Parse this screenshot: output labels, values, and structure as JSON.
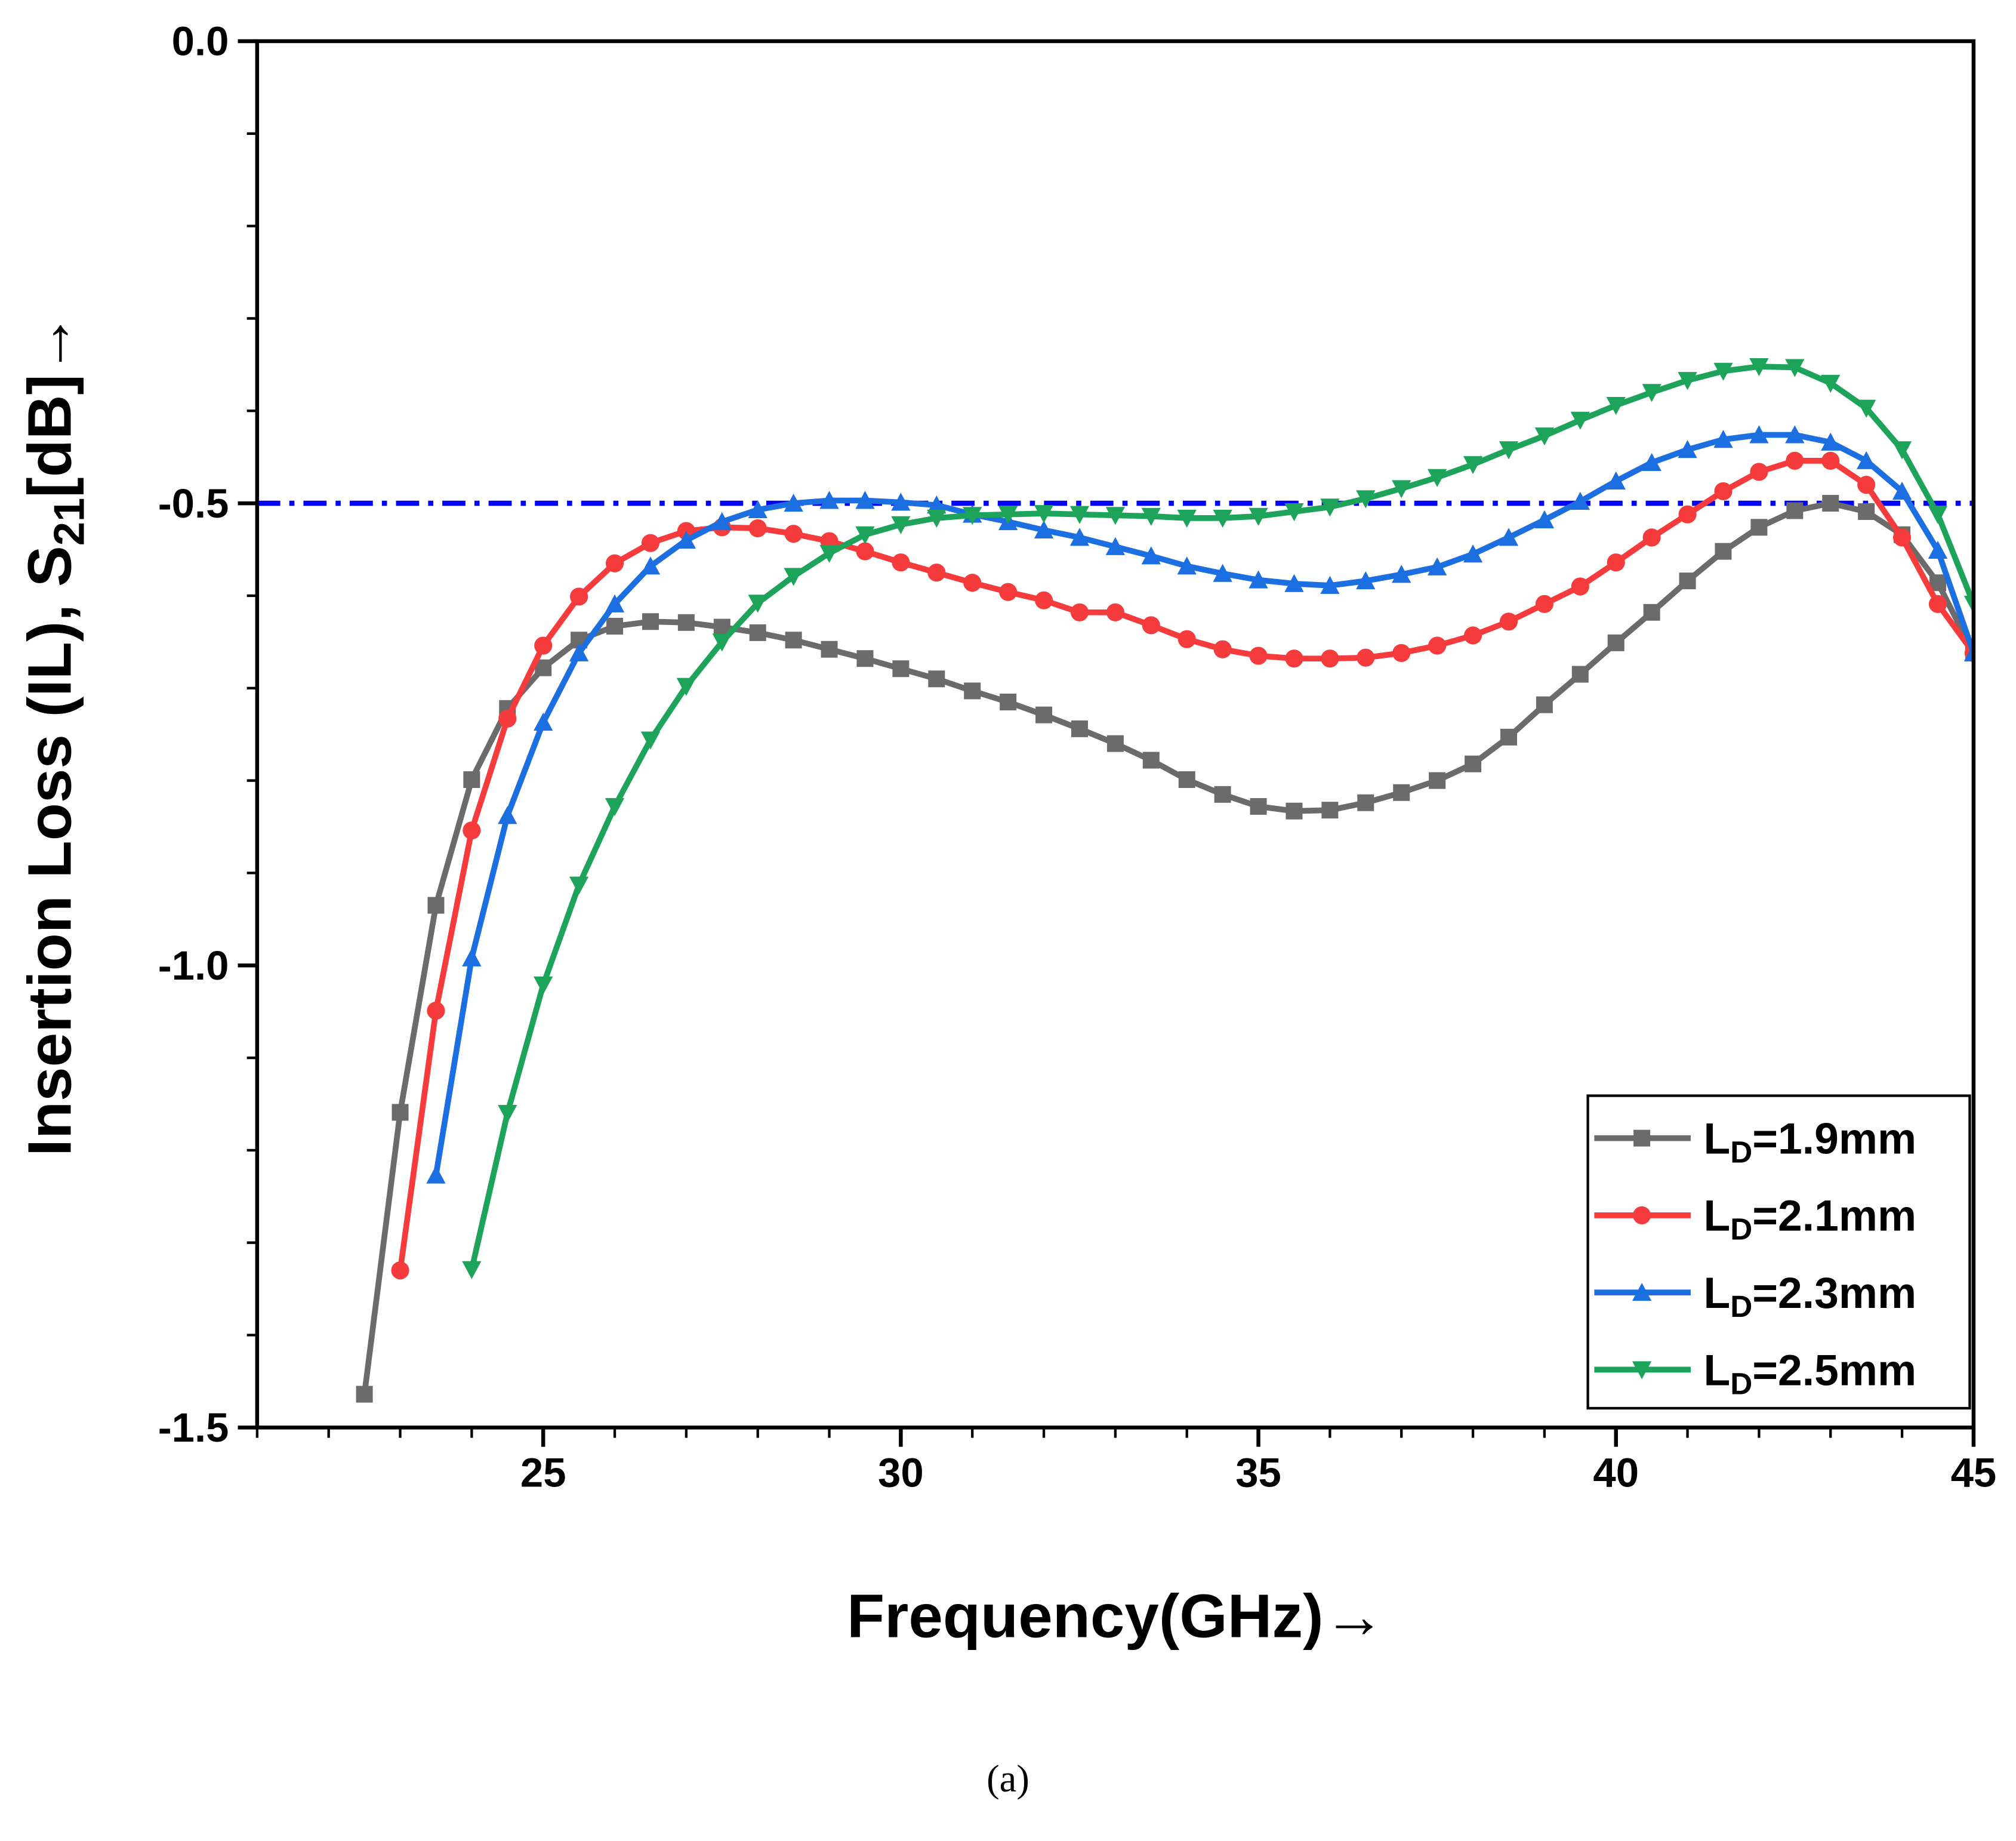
{
  "chart_data": {
    "type": "line",
    "xlabel": "Frequency(GHz)→",
    "ylabel": "Insertion Loss (IL), S21[dB]→",
    "caption": "(a)",
    "xlim": [
      21,
      45
    ],
    "xticks": [
      25,
      30,
      35,
      40,
      45
    ],
    "ylim": [
      -1.5,
      0
    ],
    "yticks": [
      {
        "value": -1.5,
        "label": "-1.5"
      },
      {
        "value": -1,
        "label": "-1.0"
      },
      {
        "value": -0.5,
        "label": "-0.5"
      },
      {
        "value": 0,
        "label": "0.0"
      }
    ],
    "hline": {
      "value": -0.5,
      "color": "#0000ff"
    },
    "legend": "lower right",
    "series": [
      {
        "name": "LD=1.9mm",
        "color": "#6b6b6b",
        "marker": "square",
        "x": [
          22.5,
          23,
          23.5,
          24,
          24.5,
          25,
          25.5,
          26,
          26.5,
          27,
          27.5,
          28,
          28.5,
          29,
          29.5,
          30,
          30.5,
          31,
          31.5,
          32,
          32.5,
          33,
          33.5,
          34,
          34.5,
          35,
          35.5,
          36,
          36.5,
          37,
          37.5,
          38,
          38.5,
          39,
          39.5,
          40,
          40.5,
          41,
          41.5,
          42,
          42.5,
          43,
          43.5,
          44,
          44.5,
          45
        ],
        "values": [
          -1.464,
          -1.159,
          -0.935,
          -0.799,
          -0.722,
          -0.678,
          -0.648,
          -0.633,
          -0.628,
          -0.629,
          -0.634,
          -0.64,
          -0.648,
          -0.658,
          -0.668,
          -0.679,
          -0.69,
          -0.703,
          -0.715,
          -0.729,
          -0.744,
          -0.76,
          -0.778,
          -0.799,
          -0.815,
          -0.828,
          -0.833,
          -0.832,
          -0.824,
          -0.813,
          -0.8,
          -0.782,
          -0.753,
          -0.718,
          -0.685,
          -0.651,
          -0.618,
          -0.584,
          -0.552,
          -0.526,
          -0.508,
          -0.5,
          -0.509,
          -0.534,
          -0.586,
          -0.662
        ]
      },
      {
        "name": "LD=2.1mm",
        "color": "#f53b3b",
        "marker": "circle",
        "x": [
          23,
          23.5,
          24,
          24.5,
          25,
          25.5,
          26,
          26.5,
          27,
          27.5,
          28,
          28.5,
          29,
          29.5,
          30,
          30.5,
          31,
          31.5,
          32,
          32.5,
          33,
          33.5,
          34,
          34.5,
          35,
          35.5,
          36,
          36.5,
          37,
          37.5,
          38,
          38.5,
          39,
          39.5,
          40,
          40.5,
          41,
          41.5,
          42,
          42.5,
          43,
          43.5,
          44,
          44.5,
          45
        ],
        "values": [
          -1.33,
          -1.049,
          -0.854,
          -0.733,
          -0.654,
          -0.601,
          -0.565,
          -0.543,
          -0.53,
          -0.526,
          -0.527,
          -0.533,
          -0.541,
          -0.552,
          -0.564,
          -0.575,
          -0.586,
          -0.596,
          -0.605,
          -0.618,
          -0.618,
          -0.632,
          -0.647,
          -0.658,
          -0.665,
          -0.668,
          -0.668,
          -0.667,
          -0.662,
          -0.654,
          -0.643,
          -0.628,
          -0.609,
          -0.59,
          -0.564,
          -0.537,
          -0.512,
          -0.487,
          -0.466,
          -0.454,
          -0.454,
          -0.48,
          -0.537,
          -0.609,
          -0.662
        ]
      },
      {
        "name": "LD=2.3mm",
        "color": "#1c6fe0",
        "marker": "triangle-up",
        "x": [
          23.5,
          24,
          24.5,
          25,
          25.5,
          26,
          26.5,
          27,
          27.5,
          28,
          28.5,
          29,
          29.5,
          30,
          30.5,
          31,
          31.5,
          32,
          32.5,
          33,
          33.5,
          34,
          34.5,
          35,
          35.5,
          36,
          36.5,
          37,
          37.5,
          38,
          38.5,
          39,
          39.5,
          40,
          40.5,
          41,
          41.5,
          42,
          42.5,
          43,
          43.5,
          44,
          44.5,
          45
        ],
        "values": [
          -1.227,
          -0.992,
          -0.838,
          -0.737,
          -0.662,
          -0.609,
          -0.568,
          -0.54,
          -0.52,
          -0.507,
          -0.5,
          -0.497,
          -0.497,
          -0.499,
          -0.502,
          -0.512,
          -0.52,
          -0.529,
          -0.537,
          -0.547,
          -0.557,
          -0.568,
          -0.576,
          -0.583,
          -0.587,
          -0.589,
          -0.584,
          -0.577,
          -0.569,
          -0.555,
          -0.537,
          -0.518,
          -0.498,
          -0.476,
          -0.456,
          -0.442,
          -0.431,
          -0.426,
          -0.426,
          -0.434,
          -0.454,
          -0.487,
          -0.551,
          -0.662
        ]
      },
      {
        "name": "LD=2.5mm",
        "color": "#1ea35b",
        "marker": "triangle-down",
        "x": [
          24,
          24.5,
          25,
          25.5,
          26,
          26.5,
          27,
          27.5,
          28,
          28.5,
          29,
          29.5,
          30,
          30.5,
          31,
          31.5,
          32,
          32.5,
          33,
          33.5,
          34,
          34.5,
          35,
          35.5,
          36,
          36.5,
          37,
          37.5,
          38,
          38.5,
          39,
          39.5,
          40,
          40.5,
          41,
          41.5,
          42,
          42.5,
          43,
          43.5,
          44,
          44.5,
          45
        ],
        "values": [
          -1.329,
          -1.16,
          -1.021,
          -0.913,
          -0.828,
          -0.756,
          -0.698,
          -0.65,
          -0.608,
          -0.579,
          -0.554,
          -0.534,
          -0.523,
          -0.516,
          -0.513,
          -0.512,
          -0.511,
          -0.512,
          -0.513,
          -0.514,
          -0.516,
          -0.516,
          -0.514,
          -0.509,
          -0.504,
          -0.495,
          -0.484,
          -0.472,
          -0.458,
          -0.442,
          -0.427,
          -0.41,
          -0.394,
          -0.38,
          -0.367,
          -0.357,
          -0.352,
          -0.353,
          -0.37,
          -0.397,
          -0.442,
          -0.512,
          -0.609
        ]
      }
    ]
  }
}
